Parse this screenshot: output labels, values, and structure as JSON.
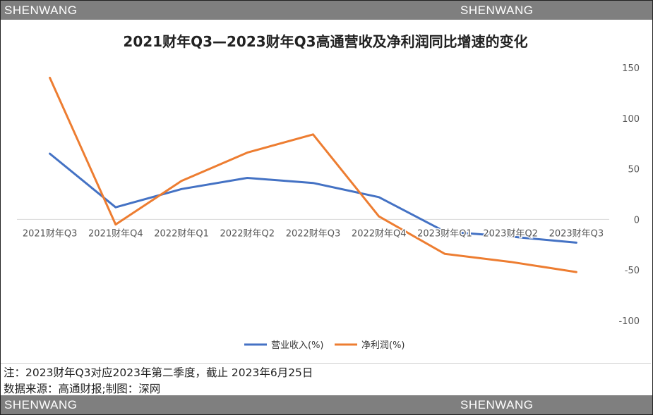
{
  "watermark": {
    "top_left": "SHENWANG",
    "top_right": "SHENWANG",
    "bottom_left": "SHENWANG",
    "bottom_right": "SHENWANG"
  },
  "notes": {
    "line1": "注：2023财年Q3对应2023年第二季度，截止  2023年6月25日",
    "line2": "数据来源：高通财报;制图：深网"
  },
  "colors": {
    "revenue": "#4472c4",
    "profit": "#ed7d31",
    "band": "#7f7f7f"
  },
  "chart_data": {
    "type": "line",
    "title": "2021财年Q3—2023财年Q3高通营收及净利润同比增速的变化",
    "categories": [
      "2021财年Q3",
      "2021财年Q4",
      "2022财年Q1",
      "2022财年Q2",
      "2022财年Q3",
      "2022财年Q4",
      "2023财年Q1",
      "2023财年Q2",
      "2023财年Q3"
    ],
    "series": [
      {
        "name": "营业收入(%)",
        "values": [
          65,
          12,
          30,
          41,
          36,
          22,
          -12,
          -17,
          -23
        ]
      },
      {
        "name": "净利润(%)",
        "values": [
          140,
          -5,
          38,
          66,
          84,
          3,
          -34,
          -42,
          -52
        ]
      }
    ],
    "yticks": [
      150,
      100,
      50,
      0,
      -50,
      -100
    ],
    "ylim": [
      -100,
      150
    ],
    "y_axis_side": "right",
    "grid": false,
    "legend": "bottom"
  }
}
